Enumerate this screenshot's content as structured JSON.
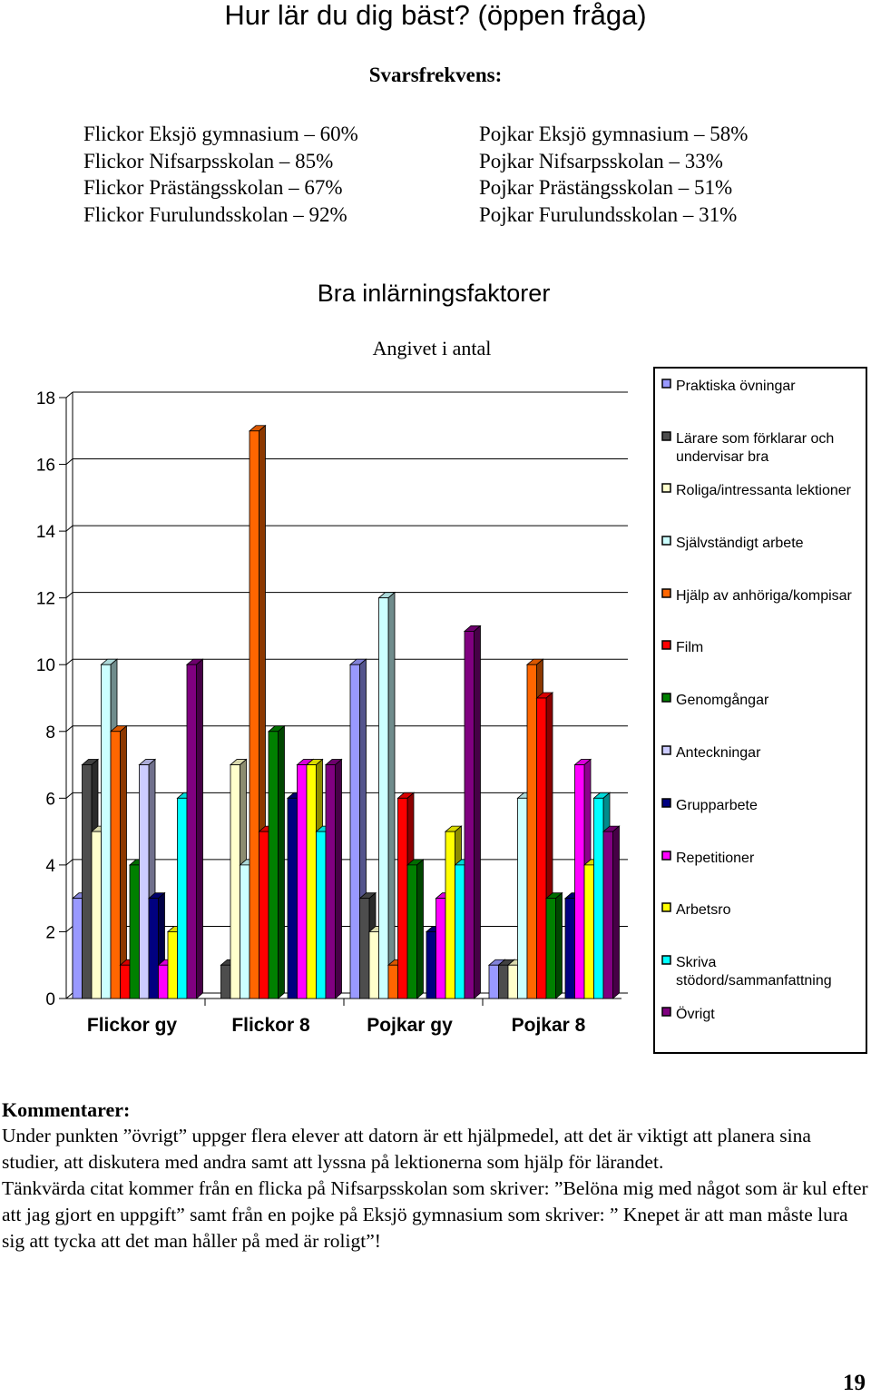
{
  "title": "Hur lär du dig bäst? (öppen fråga)",
  "frequency": {
    "heading": "Svarsfrekvens:",
    "girls": [
      "Flickor Eksjö gymnasium – 60%",
      "Flickor Nifsarpsskolan – 85%",
      "Flickor Prästängsskolan – 67%",
      "Flickor Furulundsskolan – 92%"
    ],
    "boys": [
      "Pojkar Eksjö gymnasium – 58%",
      "Pojkar Nifsarpsskolan – 33%",
      "Pojkar Prästängsskolan – 51%",
      "Pojkar Furulundsskolan – 31%"
    ]
  },
  "chart_data": {
    "type": "bar",
    "title": "Bra inlärningsfaktorer",
    "subtitle": "Angivet i antal",
    "xlabel": "",
    "ylabel": "",
    "ylim": [
      0,
      18
    ],
    "yticks": [
      "0",
      "2",
      "4",
      "6",
      "8",
      "10",
      "12",
      "14",
      "16",
      "18"
    ],
    "grid": true,
    "legend_position": "right",
    "categories": [
      "Flickor gy",
      "Flickor 8",
      "Pojkar gy",
      "Pojkar 8"
    ],
    "series": [
      {
        "name": "Praktiska övningar",
        "color": "#9999ff",
        "values": [
          3,
          0,
          10,
          1
        ]
      },
      {
        "name": "Lärare som förklarar och undervisar bra",
        "color": "#4d4d4d",
        "values": [
          7,
          1,
          3,
          1
        ]
      },
      {
        "name": "Roliga/intressanta lektioner",
        "color": "#ffffcc",
        "values": [
          5,
          7,
          2,
          1
        ]
      },
      {
        "name": "Självständigt arbete",
        "color": "#ccffff",
        "values": [
          10,
          4,
          12,
          6
        ]
      },
      {
        "name": "Hjälp av anhöriga/kompisar",
        "color": "#ff6600",
        "values": [
          8,
          17,
          1,
          10
        ]
      },
      {
        "name": "Film",
        "color": "#ff0000",
        "values": [
          1,
          5,
          6,
          9
        ]
      },
      {
        "name": "Genomgångar",
        "color": "#008000",
        "values": [
          4,
          8,
          4,
          3
        ]
      },
      {
        "name": "Anteckningar",
        "color": "#ccccff",
        "values": [
          7,
          0,
          0,
          0
        ]
      },
      {
        "name": "Grupparbete",
        "color": "#000080",
        "values": [
          3,
          6,
          2,
          3
        ]
      },
      {
        "name": "Repetitioner",
        "color": "#ff00ff",
        "values": [
          1,
          7,
          3,
          7
        ]
      },
      {
        "name": "Arbetsro",
        "color": "#ffff00",
        "values": [
          2,
          7,
          5,
          4
        ]
      },
      {
        "name": "Skriva stödord/sammanfattning",
        "color": "#00ffff",
        "values": [
          6,
          5,
          4,
          6
        ]
      },
      {
        "name": "Övrigt",
        "color": "#800080",
        "values": [
          10,
          7,
          11,
          5
        ]
      }
    ]
  },
  "comments": {
    "heading": "Kommentarer:",
    "paragraphs": [
      "Under punkten ”övrigt” uppger flera elever att datorn är ett hjälpmedel, att det är viktigt att planera sina studier, att diskutera med andra samt att lyssna på lektionerna som hjälp för lärandet.",
      "Tänkvärda citat kommer från en flicka på Nifsarpsskolan som skriver: ”Belöna mig med något som är kul efter att jag gjort en uppgift” samt från en pojke på Eksjö gymnasium som skriver: ” Knepet är att man måste lura sig att tycka att det man håller på med är roligt”!"
    ]
  },
  "page_number": "19"
}
